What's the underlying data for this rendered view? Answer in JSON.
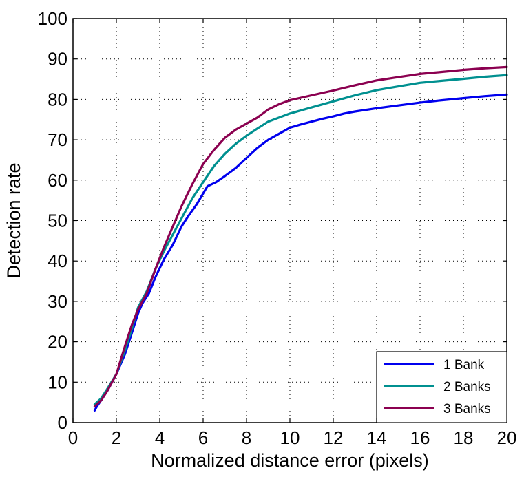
{
  "chart_data": {
    "type": "line",
    "title": "",
    "xlabel": "Normalized distance error (pixels)",
    "ylabel": "Detection rate",
    "xlim": [
      0,
      20
    ],
    "ylim": [
      0,
      100
    ],
    "xticks": [
      0,
      2,
      4,
      6,
      8,
      10,
      12,
      14,
      16,
      18,
      20
    ],
    "yticks": [
      0,
      10,
      20,
      30,
      40,
      50,
      60,
      70,
      80,
      90,
      100
    ],
    "grid": true,
    "legend_position": "bottom-right",
    "series": [
      {
        "name": "1 Bank",
        "color": "#0000ee",
        "x": [
          1.0,
          1.1,
          1.3,
          1.6,
          2.0,
          2.4,
          2.7,
          3.0,
          3.2,
          3.5,
          3.8,
          4.2,
          4.6,
          5.0,
          5.3,
          5.7,
          6.2,
          6.6,
          7.0,
          7.5,
          8.0,
          8.5,
          9.0,
          9.5,
          10.0,
          10.5,
          11.0,
          11.5,
          12.0,
          12.5,
          13.0,
          14.0,
          15.0,
          16.0,
          17.0,
          18.0,
          19.0,
          20.0
        ],
        "y": [
          3,
          4,
          5.5,
          8,
          12,
          17,
          22,
          27,
          29.5,
          32,
          36,
          40.5,
          44,
          48.5,
          51,
          54,
          58.5,
          59.5,
          61,
          63,
          65.5,
          68,
          70,
          71.5,
          73,
          73.8,
          74.5,
          75.2,
          75.8,
          76.5,
          77,
          77.8,
          78.5,
          79.2,
          79.8,
          80.3,
          80.8,
          81.2
        ]
      },
      {
        "name": "2 Banks",
        "color": "#009090",
        "x": [
          1.0,
          1.3,
          1.6,
          2.0,
          2.4,
          2.7,
          3.0,
          3.4,
          3.8,
          4.2,
          4.6,
          5.0,
          5.5,
          6.0,
          6.5,
          7.0,
          7.5,
          8.0,
          8.5,
          9.0,
          9.5,
          10.0,
          11.0,
          12.0,
          13.0,
          14.0,
          15.0,
          16.0,
          17.0,
          18.0,
          19.0,
          20.0
        ],
        "y": [
          4.5,
          6,
          8.5,
          12,
          18,
          23,
          28.5,
          32.5,
          38,
          42.5,
          46.5,
          50.5,
          55.5,
          59.5,
          63.5,
          66.5,
          69,
          71,
          72.8,
          74.5,
          75.5,
          76.5,
          78,
          79.5,
          81,
          82.3,
          83.2,
          84.1,
          84.6,
          85.1,
          85.6,
          86.0
        ]
      },
      {
        "name": "3 Banks",
        "color": "#8b0050",
        "x": [
          1.0,
          1.3,
          1.6,
          2.0,
          2.4,
          2.7,
          3.0,
          3.4,
          3.8,
          4.2,
          4.6,
          5.0,
          5.5,
          6.0,
          6.5,
          7.0,
          7.5,
          8.0,
          8.5,
          9.0,
          9.5,
          10.0,
          11.0,
          12.0,
          13.0,
          14.0,
          15.0,
          16.0,
          17.0,
          18.0,
          19.0,
          20.0
        ],
        "y": [
          4,
          5.5,
          8,
          12,
          19,
          24,
          28,
          32,
          38,
          43.5,
          48.5,
          53.5,
          59,
          64,
          67.5,
          70.5,
          72.5,
          74,
          75.5,
          77.5,
          78.8,
          79.8,
          81,
          82.2,
          83.5,
          84.7,
          85.5,
          86.3,
          86.8,
          87.3,
          87.7,
          88.0
        ]
      }
    ]
  }
}
